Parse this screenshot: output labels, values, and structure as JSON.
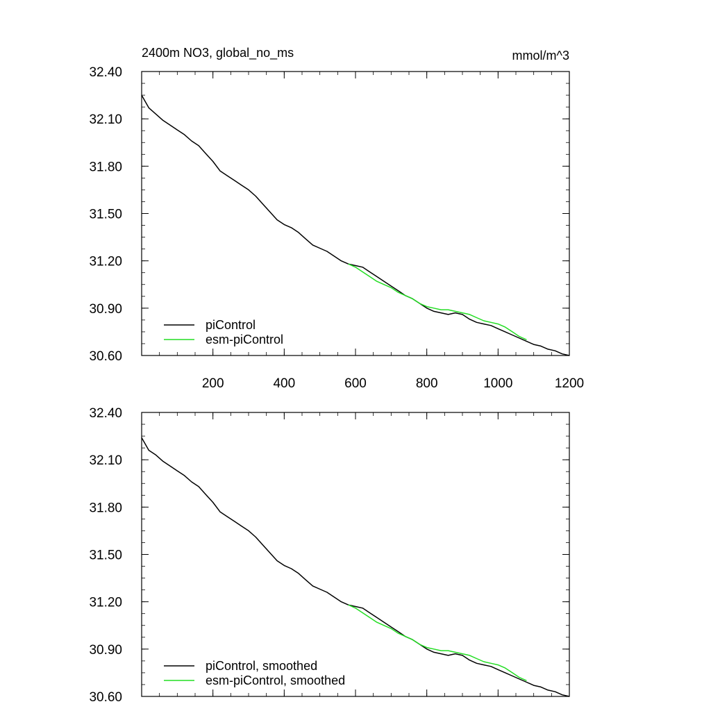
{
  "header": {
    "title": "2400m NO3, global_no_ms",
    "units": "mmol/m^3"
  },
  "colors": {
    "picontrol": "#000000",
    "esm_picontrol": "#22dd22"
  },
  "chart_data": [
    {
      "type": "line",
      "title": "2400m NO3, global_no_ms",
      "units_label": "mmol/m^3",
      "xlabel": "",
      "ylabel": "",
      "xlim": [
        0,
        1200
      ],
      "ylim": [
        30.6,
        32.4
      ],
      "xticks": [
        200,
        400,
        600,
        800,
        1000,
        1200
      ],
      "yticks": [
        30.6,
        30.9,
        31.2,
        31.5,
        31.8,
        32.1,
        32.4
      ],
      "ytick_labels": [
        "30.60",
        "30.90",
        "31.20",
        "31.50",
        "31.80",
        "32.10",
        "32.40"
      ],
      "show_xtick_labels": true,
      "legend_position": "bottom-left",
      "series": [
        {
          "name": "piControl",
          "color": "#000000",
          "x": [
            0,
            20,
            40,
            60,
            80,
            100,
            120,
            140,
            160,
            180,
            200,
            220,
            240,
            260,
            280,
            300,
            320,
            340,
            360,
            380,
            400,
            420,
            440,
            460,
            480,
            500,
            520,
            540,
            560,
            580,
            600,
            620,
            640,
            660,
            680,
            700,
            720,
            740,
            760,
            780,
            800,
            820,
            840,
            860,
            880,
            900,
            920,
            940,
            960,
            980,
            1000,
            1020,
            1040,
            1060,
            1080,
            1100,
            1120,
            1140,
            1160,
            1180,
            1200
          ],
          "values": [
            32.25,
            32.17,
            32.13,
            32.09,
            32.06,
            32.03,
            32.0,
            31.96,
            31.93,
            31.88,
            31.83,
            31.77,
            31.74,
            31.71,
            31.68,
            31.65,
            31.61,
            31.56,
            31.51,
            31.46,
            31.43,
            31.41,
            31.38,
            31.34,
            31.3,
            31.28,
            31.26,
            31.23,
            31.2,
            31.18,
            31.17,
            31.16,
            31.13,
            31.1,
            31.07,
            31.04,
            31.01,
            30.98,
            30.96,
            30.93,
            30.9,
            30.88,
            30.87,
            30.86,
            30.87,
            30.86,
            30.83,
            30.81,
            30.8,
            30.79,
            30.77,
            30.75,
            30.73,
            30.71,
            30.69,
            30.67,
            30.66,
            30.64,
            30.63,
            30.61,
            30.6
          ]
        },
        {
          "name": "esm-piControl",
          "color": "#22dd22",
          "x": [
            580,
            600,
            620,
            640,
            660,
            680,
            700,
            720,
            740,
            760,
            780,
            800,
            820,
            840,
            860,
            880,
            900,
            920,
            940,
            960,
            980,
            1000,
            1020,
            1040,
            1060,
            1080
          ],
          "values": [
            31.18,
            31.16,
            31.13,
            31.1,
            31.07,
            31.05,
            31.03,
            31.0,
            30.98,
            30.96,
            30.93,
            30.91,
            30.9,
            30.89,
            30.89,
            30.88,
            30.87,
            30.86,
            30.84,
            30.82,
            30.81,
            30.8,
            30.78,
            30.75,
            30.72,
            30.7
          ]
        }
      ]
    },
    {
      "type": "line",
      "title": "",
      "xlabel": "",
      "ylabel": "",
      "xlim": [
        0,
        1200
      ],
      "ylim": [
        30.6,
        32.4
      ],
      "xticks": [
        200,
        400,
        600,
        800,
        1000,
        1200
      ],
      "yticks": [
        30.6,
        30.9,
        31.2,
        31.5,
        31.8,
        32.1,
        32.4
      ],
      "ytick_labels": [
        "30.60",
        "30.90",
        "31.20",
        "31.50",
        "31.80",
        "32.10",
        "32.40"
      ],
      "show_xtick_labels": false,
      "legend_position": "bottom-left",
      "series": [
        {
          "name": "piControl, smoothed",
          "color": "#000000",
          "x": [
            0,
            20,
            40,
            60,
            80,
            100,
            120,
            140,
            160,
            180,
            200,
            220,
            240,
            260,
            280,
            300,
            320,
            340,
            360,
            380,
            400,
            420,
            440,
            460,
            480,
            500,
            520,
            540,
            560,
            580,
            600,
            620,
            640,
            660,
            680,
            700,
            720,
            740,
            760,
            780,
            800,
            820,
            840,
            860,
            880,
            900,
            920,
            940,
            960,
            980,
            1000,
            1020,
            1040,
            1060,
            1080,
            1100,
            1120,
            1140,
            1160,
            1180,
            1200
          ],
          "values": [
            32.24,
            32.16,
            32.13,
            32.09,
            32.06,
            32.03,
            32.0,
            31.96,
            31.93,
            31.88,
            31.83,
            31.77,
            31.74,
            31.71,
            31.68,
            31.65,
            31.61,
            31.56,
            31.51,
            31.46,
            31.43,
            31.41,
            31.38,
            31.34,
            31.3,
            31.28,
            31.26,
            31.23,
            31.2,
            31.18,
            31.17,
            31.16,
            31.13,
            31.1,
            31.07,
            31.04,
            31.01,
            30.98,
            30.96,
            30.93,
            30.9,
            30.88,
            30.87,
            30.86,
            30.87,
            30.86,
            30.83,
            30.81,
            30.8,
            30.79,
            30.77,
            30.75,
            30.73,
            30.71,
            30.69,
            30.67,
            30.66,
            30.64,
            30.63,
            30.61,
            30.6
          ]
        },
        {
          "name": "esm-piControl, smoothed",
          "color": "#22dd22",
          "x": [
            580,
            600,
            620,
            640,
            660,
            680,
            700,
            720,
            740,
            760,
            780,
            800,
            820,
            840,
            860,
            880,
            900,
            920,
            940,
            960,
            980,
            1000,
            1020,
            1040,
            1060,
            1080
          ],
          "values": [
            31.18,
            31.16,
            31.13,
            31.1,
            31.07,
            31.05,
            31.03,
            31.0,
            30.98,
            30.96,
            30.93,
            30.91,
            30.9,
            30.89,
            30.89,
            30.88,
            30.87,
            30.86,
            30.84,
            30.82,
            30.81,
            30.8,
            30.78,
            30.75,
            30.72,
            30.7
          ]
        }
      ]
    }
  ]
}
